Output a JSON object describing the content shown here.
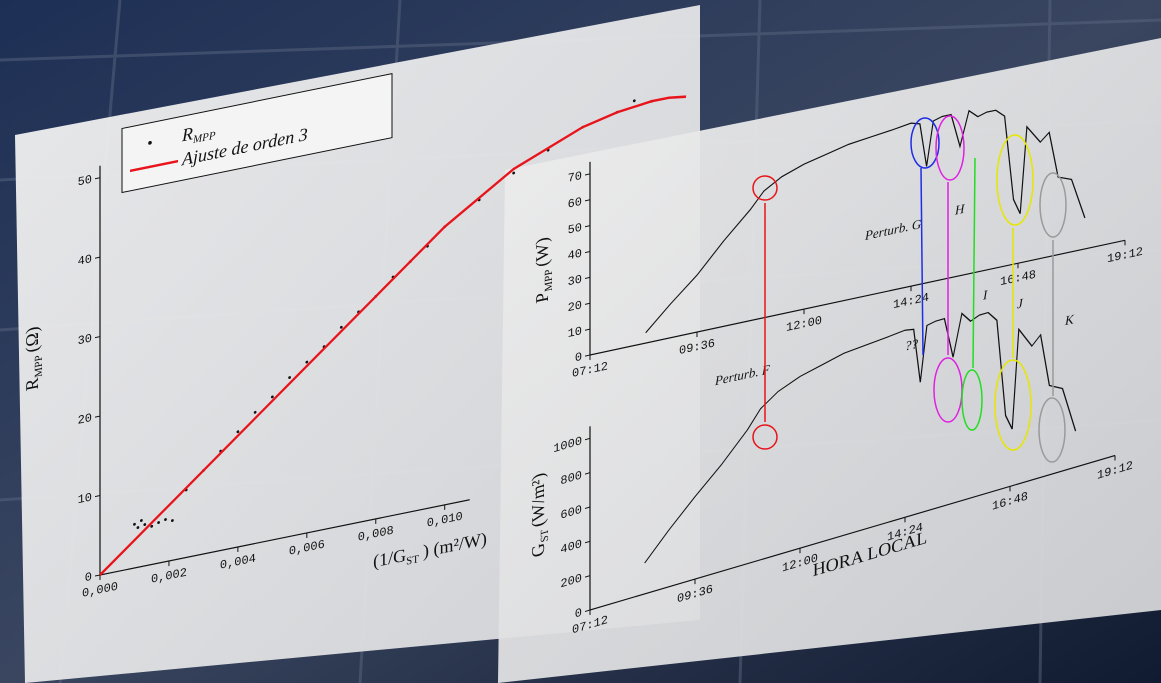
{
  "chart_data": [
    {
      "type": "scatter",
      "y_label": {
        "main": "R",
        "sub": "MPP",
        "unit": "(Ω)"
      },
      "x_label": {
        "main": "(1/G",
        "sub": "ST",
        "unit": ") (m²/W)"
      },
      "xlim": [
        0,
        0.017
      ],
      "xticks": [
        {
          "value": 0,
          "label": "0,000"
        },
        {
          "value": 0.002,
          "label": "0,002"
        },
        {
          "value": 0.004,
          "label": "0,004"
        },
        {
          "value": 0.006,
          "label": "0,006"
        },
        {
          "value": 0.008,
          "label": "0,008"
        },
        {
          "value": 0.01,
          "label": "0,010"
        }
      ],
      "ylim": [
        0,
        55
      ],
      "yticks": [
        0,
        10,
        20,
        30,
        40,
        50
      ],
      "series": [
        {
          "name": "R",
          "name_sub": "MPP",
          "type": "scatter",
          "color": "#111111",
          "x": [
            0.001,
            0.0011,
            0.0012,
            0.0013,
            0.0015,
            0.0017,
            0.0019,
            0.0021,
            0.0025,
            0.003,
            0.0035,
            0.004,
            0.0045,
            0.005,
            0.0055,
            0.006,
            0.0065,
            0.007,
            0.0075,
            0.008,
            0.0085,
            0.009,
            0.0095,
            0.01,
            0.011,
            0.012,
            0.013,
            0.014,
            0.015,
            0.0155,
            0.016
          ],
          "values": [
            5.5,
            5.0,
            5.8,
            5.2,
            4.8,
            5.1,
            5.3,
            5.0,
            8.5,
            10.5,
            12.5,
            14.5,
            16.5,
            18,
            20,
            21.5,
            23,
            25,
            26.5,
            28,
            30,
            31.5,
            33,
            35,
            37.5,
            40,
            42,
            44,
            45,
            46,
            45.5
          ]
        },
        {
          "name": "Ajuste de orden 3",
          "type": "line",
          "color": "#e8141b",
          "x": [
            0,
            0.002,
            0.004,
            0.006,
            0.008,
            0.01,
            0.012,
            0.014,
            0.015,
            0.016,
            0.0165,
            0.017
          ],
          "values": [
            0,
            7,
            14,
            21,
            28,
            35,
            40.5,
            44,
            45,
            45.5,
            45.5,
            45.2
          ]
        }
      ]
    },
    {
      "type": "line",
      "y_label": {
        "main": "P",
        "sub": "MPP",
        "unit": "(W)"
      },
      "xlim": [
        7.2,
        19.2
      ],
      "xticks": [
        {
          "value": 7.2,
          "label": "07:12"
        },
        {
          "value": 9.6,
          "label": "09:36"
        },
        {
          "value": 12,
          "label": "12:00"
        },
        {
          "value": 14.4,
          "label": "14:24"
        },
        {
          "value": 16.8,
          "label": "16:48"
        },
        {
          "value": 19.2,
          "label": "19:12"
        }
      ],
      "ylim": [
        0,
        75
      ],
      "yticks": [
        0,
        10,
        20,
        30,
        40,
        50,
        60,
        70
      ],
      "series": [
        {
          "type": "line",
          "color": "#111111",
          "x": [
            8.45,
            9,
            9.6,
            10.2,
            10.8,
            11.1,
            11.5,
            12,
            12.5,
            13,
            13.5,
            14,
            14.4,
            14.6,
            14.75,
            14.9,
            15.1,
            15.3,
            15.5,
            15.7,
            15.9,
            16.1,
            16.3,
            16.5,
            16.7,
            16.85,
            17.0,
            17.3,
            17.5,
            17.7,
            18.0,
            18.3
          ],
          "values": [
            4,
            13,
            22,
            33,
            43,
            49,
            53,
            56,
            58,
            60,
            61,
            62,
            63,
            62,
            45,
            62,
            63,
            63,
            50,
            63,
            60,
            61,
            61,
            58,
            25,
            19,
            52,
            45,
            48,
            30,
            28,
            12
          ]
        }
      ],
      "annotations": [
        {
          "text": "Perturb. F",
          "color": "#e8141b"
        },
        {
          "text": "Perturb. G",
          "color": "#1e2ee6"
        },
        {
          "text": "H",
          "color": "#e020e0"
        },
        {
          "text": "I",
          "color": "#22dd22"
        },
        {
          "text": "J",
          "color": "#e6e600"
        },
        {
          "text": "K",
          "color": "#9a9a9a"
        },
        {
          "text": "??",
          "color": "#1e2ee6"
        }
      ]
    },
    {
      "type": "line",
      "y_label": {
        "main": "G",
        "sub": "ST",
        "unit": "(W/m²)"
      },
      "x_label": "HORA LOCAL",
      "xlim": [
        7.2,
        19.2
      ],
      "xticks": [
        {
          "value": 7.2,
          "label": "07:12"
        },
        {
          "value": 9.6,
          "label": "09:36"
        },
        {
          "value": 12,
          "label": "12:00"
        },
        {
          "value": 14.4,
          "label": "14:24"
        },
        {
          "value": 16.8,
          "label": "16:48"
        },
        {
          "value": 19.2,
          "label": "19:12"
        }
      ],
      "ylim": [
        0,
        1200
      ],
      "yticks": [
        0,
        200,
        400,
        600,
        800,
        1000
      ],
      "series": [
        {
          "type": "line",
          "color": "#111111",
          "x": [
            8.45,
            9,
            9.6,
            10.2,
            10.8,
            11.1,
            11.5,
            12,
            12.5,
            13,
            13.5,
            14,
            14.4,
            14.6,
            14.75,
            14.9,
            15.1,
            15.3,
            15.5,
            15.7,
            15.9,
            16.1,
            16.3,
            16.5,
            16.7,
            16.85,
            17.0,
            17.3,
            17.5,
            17.7,
            18.0,
            18.3
          ],
          "values": [
            180,
            330,
            480,
            620,
            780,
            880,
            950,
            1000,
            1030,
            1060,
            1070,
            1080,
            1090,
            1080,
            760,
            1080,
            1090,
            1090,
            850,
            1090,
            1030,
            1050,
            1050,
            990,
            420,
            330,
            900,
            780,
            830,
            520,
            480,
            210
          ]
        }
      ]
    }
  ]
}
